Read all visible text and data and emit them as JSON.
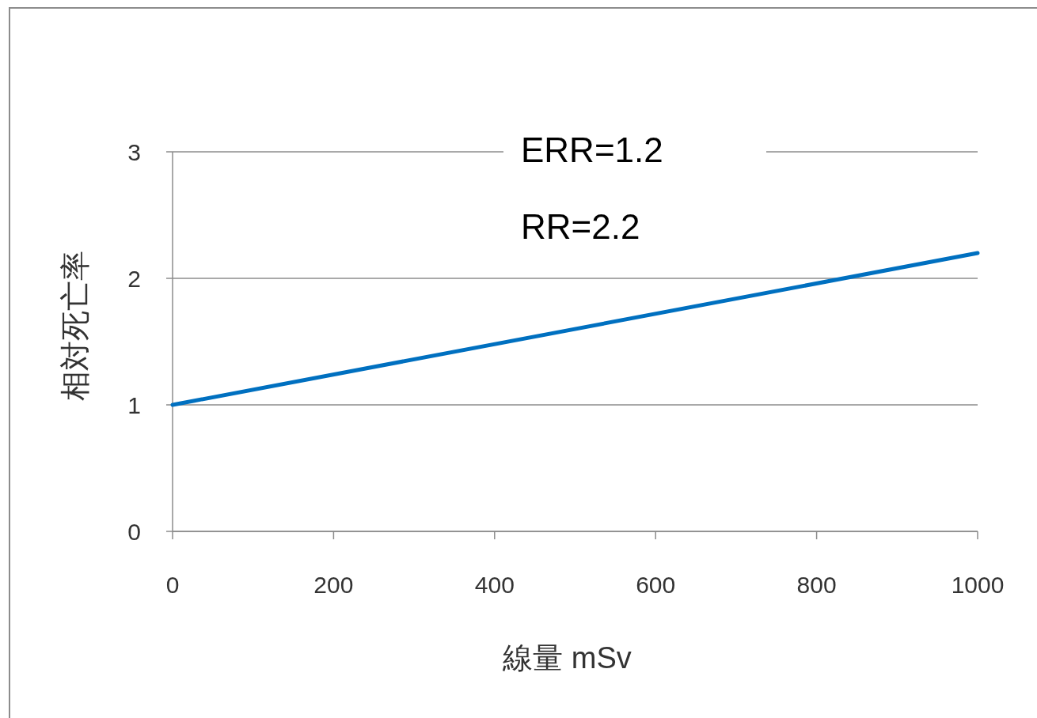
{
  "chart_data": {
    "type": "line",
    "xlabel": "線量 mSv",
    "ylabel": "相対死亡率",
    "annotations": [
      "ERR=1.2",
      "RR=2.2"
    ],
    "series": [
      {
        "x": [
          0,
          1000
        ],
        "values": [
          1,
          2.2
        ],
        "color": "#0070c0"
      }
    ],
    "xlim": [
      0,
      1000
    ],
    "xticks": [
      0,
      200,
      400,
      600,
      800,
      1000
    ],
    "ylim": [
      0,
      3
    ],
    "yticks": [
      0,
      1,
      2,
      3
    ],
    "grid": "y",
    "marker": "none",
    "line_style": "solid"
  }
}
